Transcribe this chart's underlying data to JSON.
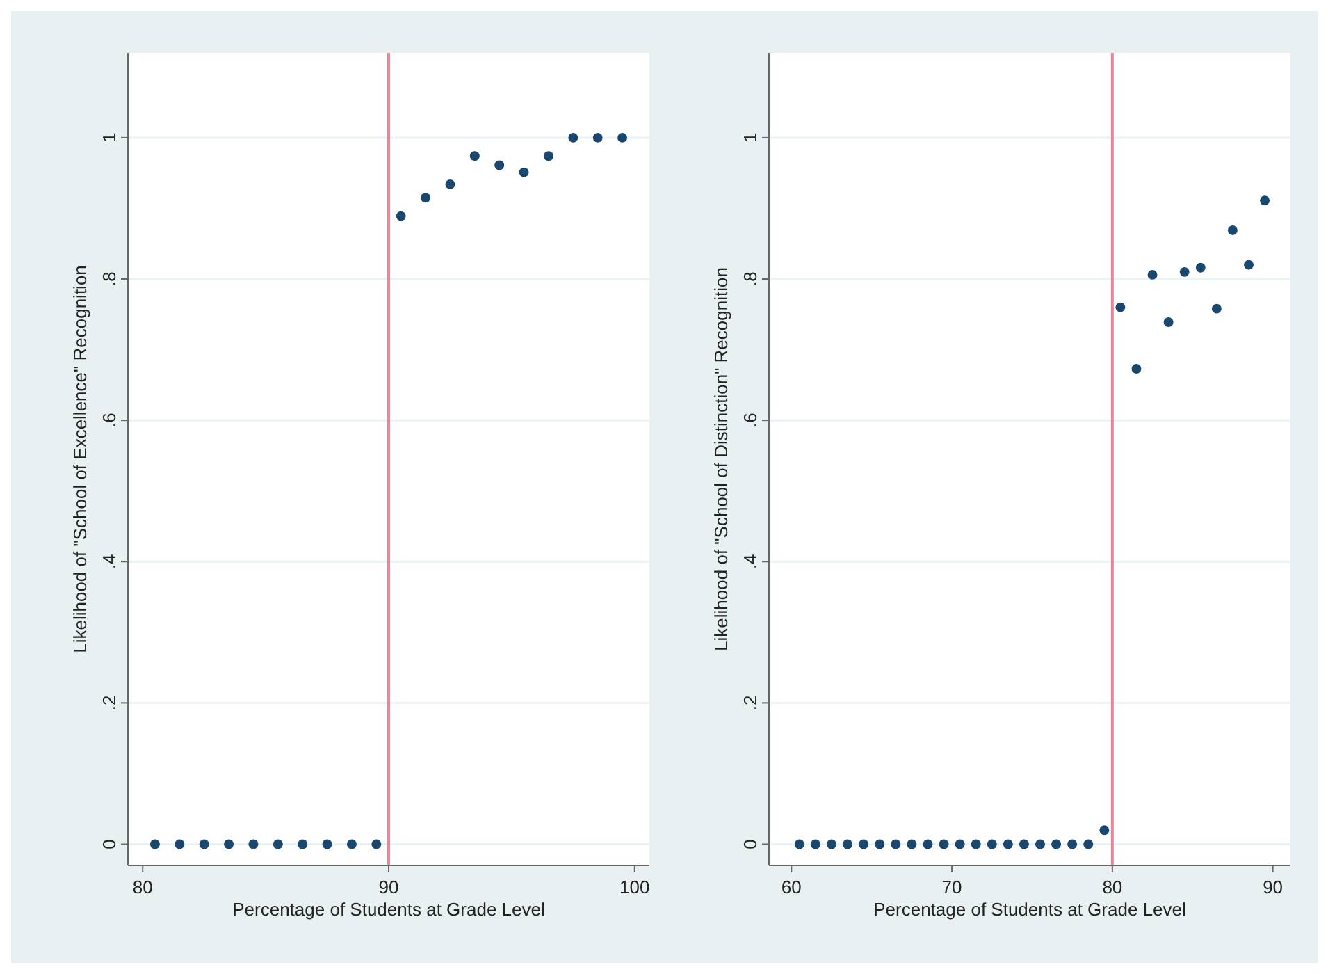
{
  "chart_data": [
    {
      "type": "scatter",
      "xlabel": "Percentage of Students at Grade Level",
      "ylabel": "Likelihood of \"School of Excellence\" Recognition",
      "xlim": [
        79.4,
        100.6
      ],
      "ylim": [
        -0.03,
        1.12
      ],
      "xticks": [
        80,
        90,
        100
      ],
      "yticks": [
        {
          "value": 0,
          "label": "0"
        },
        {
          "value": 0.2,
          "label": ".2"
        },
        {
          "value": 0.4,
          "label": ".4"
        },
        {
          "value": 0.6,
          "label": ".6"
        },
        {
          "value": 0.8,
          "label": ".8"
        },
        {
          "value": 1,
          "label": "1"
        }
      ],
      "grid": "y",
      "marker": "circle",
      "ref_lines": [
        {
          "axis": "x",
          "value": 90,
          "color": "#e8879c"
        }
      ],
      "series": [
        {
          "color": "#1a476f",
          "x": [
            80.5,
            81.5,
            82.5,
            83.5,
            84.5,
            85.5,
            86.5,
            87.5,
            88.5,
            89.5,
            90.5,
            91.5,
            92.5,
            93.5,
            94.5,
            95.5,
            96.5,
            97.5,
            98.5,
            99.5
          ],
          "values": [
            0,
            0,
            0,
            0,
            0,
            0,
            0,
            0,
            0,
            0,
            0.889,
            0.915,
            0.934,
            0.974,
            0.961,
            0.951,
            0.974,
            1,
            1,
            1
          ]
        }
      ]
    },
    {
      "type": "scatter",
      "xlabel": "Percentage of Students at Grade Level",
      "ylabel": "Likelihood of \"School of Distinction\" Recognition",
      "xlim": [
        58.6,
        91.1
      ],
      "ylim": [
        -0.03,
        1.12
      ],
      "xticks": [
        60,
        70,
        80,
        90
      ],
      "yticks": [
        {
          "value": 0,
          "label": "0"
        },
        {
          "value": 0.2,
          "label": ".2"
        },
        {
          "value": 0.4,
          "label": ".4"
        },
        {
          "value": 0.6,
          "label": ".6"
        },
        {
          "value": 0.8,
          "label": ".8"
        },
        {
          "value": 1,
          "label": "1"
        }
      ],
      "grid": "y",
      "marker": "circle",
      "ref_lines": [
        {
          "axis": "x",
          "value": 80,
          "color": "#e8879c"
        }
      ],
      "series": [
        {
          "color": "#1a476f",
          "x": [
            60.5,
            61.5,
            62.5,
            63.5,
            64.5,
            65.5,
            66.5,
            67.5,
            68.5,
            69.5,
            70.5,
            71.5,
            72.5,
            73.5,
            74.5,
            75.5,
            76.5,
            77.5,
            78.5,
            79.5,
            80.5,
            81.5,
            82.5,
            83.5,
            84.5,
            85.5,
            86.5,
            87.5,
            88.5,
            89.5
          ],
          "values": [
            0,
            0,
            0,
            0,
            0,
            0,
            0,
            0,
            0,
            0,
            0,
            0,
            0,
            0,
            0,
            0,
            0,
            0,
            0,
            0.02,
            0.76,
            0.673,
            0.806,
            0.739,
            0.81,
            0.816,
            0.758,
            0.869,
            0.82,
            0.911
          ]
        }
      ]
    }
  ]
}
